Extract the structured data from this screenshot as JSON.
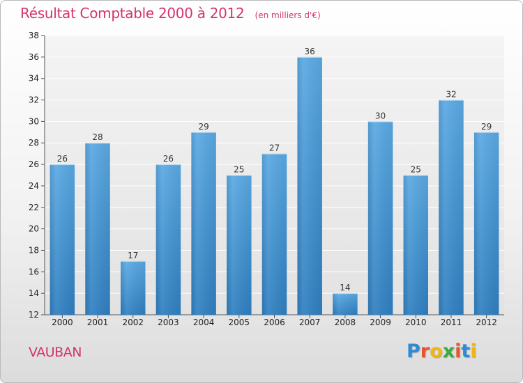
{
  "header": {
    "title": "Résultat Comptable 2000 à 2012",
    "unit": "(en milliers d'€)"
  },
  "footer": {
    "commune": "VAUBAN",
    "logo": {
      "text": "Proxiti",
      "letter_colors": [
        "#2e8bd6",
        "#e8542e",
        "#f2b515",
        "#3bab3b",
        "#e8542e",
        "#2e8bd6",
        "#f2b515"
      ]
    }
  },
  "colors": {
    "accent": "#d4336f",
    "bar_top": "#5aa9e3",
    "bar_bottom": "#2f7fc0"
  },
  "chart_data": {
    "type": "bar",
    "title": "Résultat Comptable 2000 à 2012",
    "subtitle": "(en milliers d'€)",
    "xlabel": "",
    "ylabel": "",
    "categories": [
      "2000",
      "2001",
      "2002",
      "2003",
      "2004",
      "2005",
      "2006",
      "2007",
      "2008",
      "2009",
      "2010",
      "2011",
      "2012"
    ],
    "values": [
      26,
      28,
      17,
      26,
      29,
      25,
      27,
      36,
      14,
      30,
      25,
      32,
      29
    ],
    "ylim": [
      12,
      38
    ],
    "yticks": [
      12,
      14,
      16,
      18,
      20,
      22,
      24,
      26,
      28,
      30,
      32,
      34,
      36,
      38
    ],
    "grid": true,
    "legend": "none"
  }
}
